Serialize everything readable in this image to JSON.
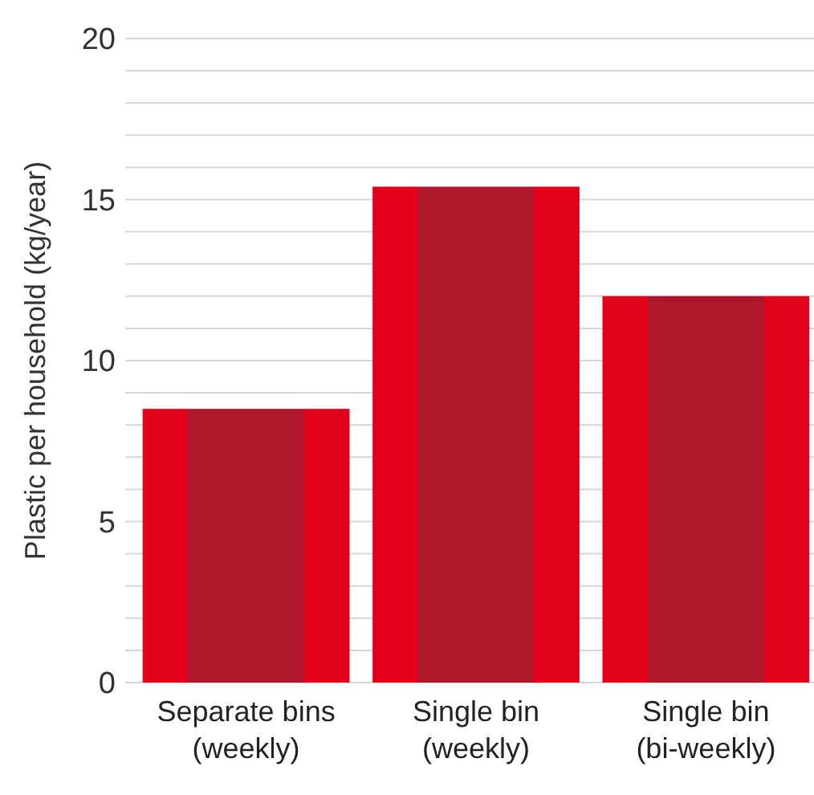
{
  "chart_data": {
    "type": "bar",
    "ylabel": "Plastic per household (kg/year)",
    "categories": [
      "Separate bins\n(weekly)",
      "Single bin\n(weekly)",
      "Single bin\n(bi-weekly)"
    ],
    "values": [
      8.5,
      15.4,
      12.0
    ],
    "color": "#e2001a",
    "ylim": [
      0,
      20
    ],
    "yticks": [
      0,
      {
        "value": 1,
        "label": null
      },
      {
        "value": 2,
        "label": null
      },
      {
        "value": 3,
        "label": null
      },
      {
        "value": 4,
        "label": null
      },
      5,
      {
        "value": 6,
        "label": null
      },
      {
        "value": 7,
        "label": null
      },
      {
        "value": 8,
        "label": null
      },
      {
        "value": 9,
        "label": null
      },
      10,
      {
        "value": 11,
        "label": null
      },
      {
        "value": 12,
        "label": null
      },
      {
        "value": 13,
        "label": null
      },
      {
        "value": 14,
        "label": null
      },
      15,
      {
        "value": 16,
        "label": null
      },
      {
        "value": 17,
        "label": null
      },
      {
        "value": 18,
        "label": null
      },
      {
        "value": 19,
        "label": null
      },
      20
    ],
    "grid": true
  }
}
